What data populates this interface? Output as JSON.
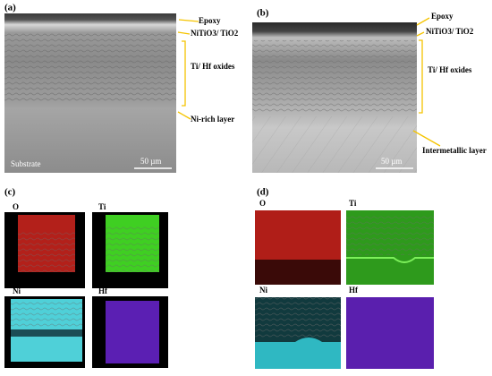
{
  "panels": [
    {
      "label": "(a)",
      "annotations": [
        "Epoxy",
        "NiTiO3/ TiO2",
        "Ti/ Hf oxides",
        "Ni-rich layer"
      ],
      "substrate_label": "Substrate",
      "scale_bar": "50 µm"
    },
    {
      "label": "(b)",
      "annotations": [
        "Epoxy",
        "NiTiO3/ TiO2",
        "Ti/ Hf oxides",
        "Intermetallic layer"
      ],
      "scale_bar": "50 µm"
    },
    {
      "label": "(c)",
      "maps": [
        "O",
        "Ti",
        "Ni",
        "Hf"
      ]
    },
    {
      "label": "(d)",
      "maps": [
        "O",
        "Ti",
        "Ni",
        "Hf"
      ]
    }
  ]
}
